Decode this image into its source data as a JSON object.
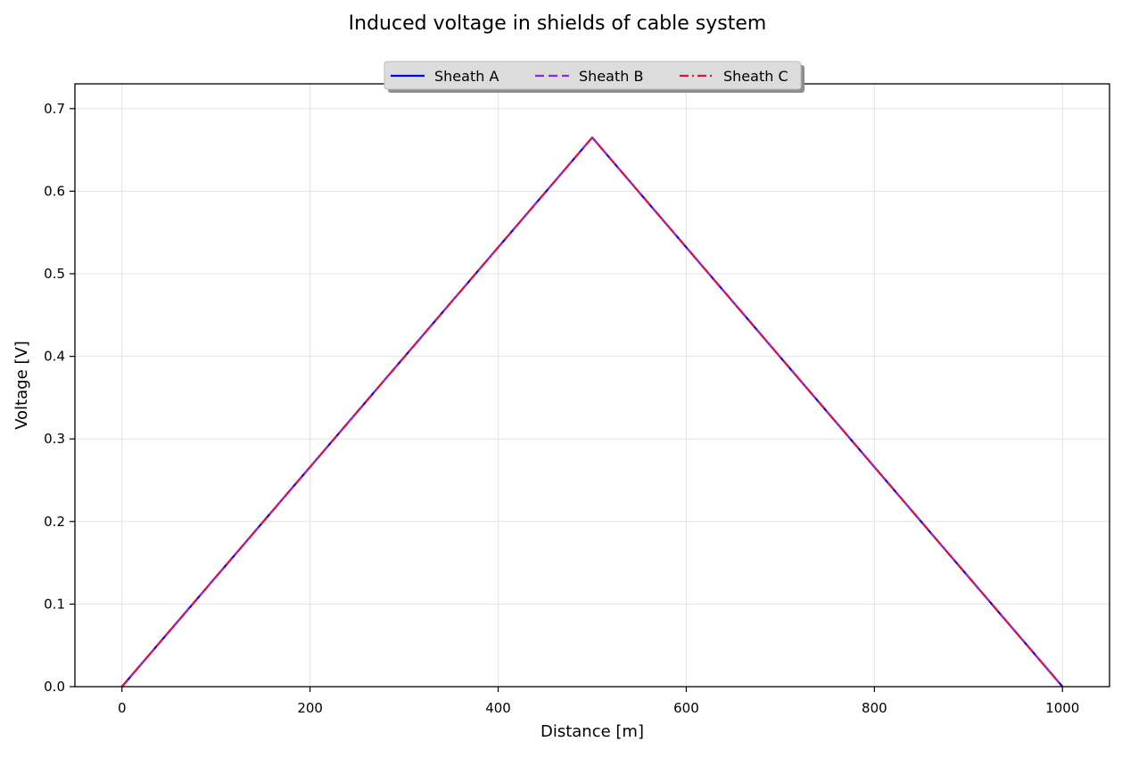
{
  "chart_data": {
    "type": "line",
    "title": "Induced voltage in shields of cable system",
    "xlabel": "Distance [m]",
    "ylabel": "Voltage [V]",
    "xlim": [
      -50,
      1050
    ],
    "ylim": [
      0,
      0.73
    ],
    "xticks": [
      0,
      200,
      400,
      600,
      800,
      1000
    ],
    "xtick_labels": [
      "0",
      "200",
      "400",
      "600",
      "800",
      "1000"
    ],
    "yticks": [
      0.0,
      0.1,
      0.2,
      0.3,
      0.4,
      0.5,
      0.6,
      0.7
    ],
    "ytick_labels": [
      "0.0",
      "0.1",
      "0.2",
      "0.3",
      "0.4",
      "0.5",
      "0.6",
      "0.7"
    ],
    "grid": true,
    "legend_position": "top-center",
    "series": [
      {
        "name": "Sheath A",
        "color": "#0000ff",
        "style": "solid",
        "x": [
          0,
          500,
          1000
        ],
        "y": [
          0.0,
          0.665,
          0.0
        ]
      },
      {
        "name": "Sheath B",
        "color": "#8a2be2",
        "style": "dashed",
        "x": [
          0,
          500,
          1000
        ],
        "y": [
          0.0,
          0.665,
          0.0
        ]
      },
      {
        "name": "Sheath C",
        "color": "#dc143c",
        "style": "dashdot",
        "x": [
          0,
          500,
          1000
        ],
        "y": [
          0.0,
          0.665,
          0.0
        ]
      }
    ]
  }
}
